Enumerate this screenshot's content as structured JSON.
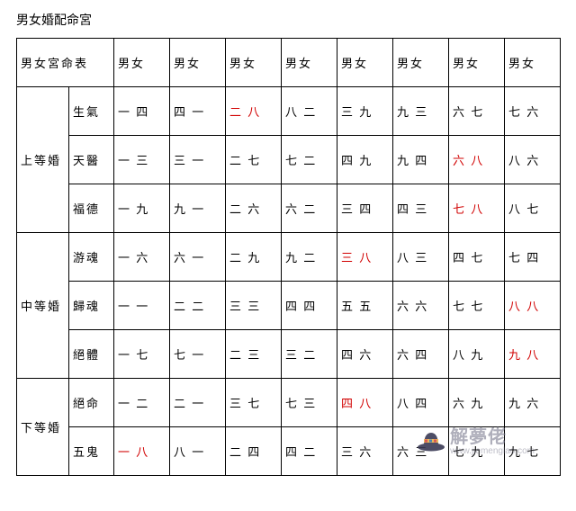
{
  "title": "男女婚配命宮",
  "header": {
    "label": "男女宮命表",
    "col": "男女"
  },
  "groups": [
    {
      "name": "上等婚",
      "rows": [
        {
          "type": "生氣",
          "cells": [
            {
              "t": "一 四"
            },
            {
              "t": "四 一"
            },
            {
              "t": "二 八",
              "red": true
            },
            {
              "t": "八 二"
            },
            {
              "t": "三 九"
            },
            {
              "t": "九 三"
            },
            {
              "t": "六 七"
            },
            {
              "t": "七 六"
            }
          ]
        },
        {
          "type": "天醫",
          "cells": [
            {
              "t": "一 三"
            },
            {
              "t": "三 一"
            },
            {
              "t": "二 七"
            },
            {
              "t": "七 二"
            },
            {
              "t": "四 九"
            },
            {
              "t": "九 四"
            },
            {
              "t": "六 八",
              "red": true
            },
            {
              "t": "八 六"
            }
          ]
        },
        {
          "type": "福德",
          "cells": [
            {
              "t": "一 九"
            },
            {
              "t": "九 一"
            },
            {
              "t": "二 六"
            },
            {
              "t": "六 二"
            },
            {
              "t": "三 四"
            },
            {
              "t": "四 三"
            },
            {
              "t": "七 八",
              "red": true
            },
            {
              "t": "八 七"
            }
          ]
        }
      ]
    },
    {
      "name": "中等婚",
      "rows": [
        {
          "type": "游魂",
          "cells": [
            {
              "t": "一 六"
            },
            {
              "t": "六 一"
            },
            {
              "t": "二 九"
            },
            {
              "t": "九 二"
            },
            {
              "t": "三 八",
              "red": true
            },
            {
              "t": "八 三"
            },
            {
              "t": "四 七"
            },
            {
              "t": "七 四"
            }
          ]
        },
        {
          "type": "歸魂",
          "cells": [
            {
              "t": "一 一"
            },
            {
              "t": "二 二"
            },
            {
              "t": "三 三"
            },
            {
              "t": "四 四"
            },
            {
              "t": "五 五"
            },
            {
              "t": "六 六"
            },
            {
              "t": "七 七"
            },
            {
              "t": "八 八",
              "red": true
            }
          ]
        },
        {
          "type": "絕體",
          "cells": [
            {
              "t": "一 七"
            },
            {
              "t": "七 一"
            },
            {
              "t": "二 三"
            },
            {
              "t": "三 二"
            },
            {
              "t": "四 六"
            },
            {
              "t": "六 四"
            },
            {
              "t": "八 九"
            },
            {
              "t": "九 八",
              "red": true
            }
          ]
        }
      ]
    },
    {
      "name": "下等婚",
      "rows": [
        {
          "type": "絕命",
          "cells": [
            {
              "t": "一 二"
            },
            {
              "t": "二 一"
            },
            {
              "t": "三 七"
            },
            {
              "t": "七 三"
            },
            {
              "t": "四 八",
              "red": true
            },
            {
              "t": "八 四"
            },
            {
              "t": "六 九"
            },
            {
              "t": "九 六"
            }
          ]
        },
        {
          "type": "五鬼",
          "cells": [
            {
              "t": "一 八",
              "red": true
            },
            {
              "t": "八 一"
            },
            {
              "t": "二 四"
            },
            {
              "t": "四 二"
            },
            {
              "t": "三 六"
            },
            {
              "t": "六 三"
            },
            {
              "t": "七 九"
            },
            {
              "t": "九 七"
            }
          ]
        }
      ]
    }
  ],
  "watermark": {
    "text": "解夢佬",
    "sub": "www.jiemenglao.com"
  },
  "colors": {
    "red": "#d10000",
    "border": "#000000",
    "bg": "#ffffff"
  }
}
